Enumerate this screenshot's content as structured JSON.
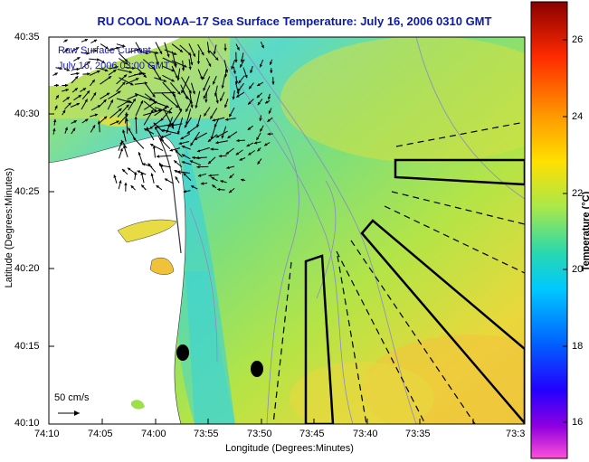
{
  "title": "RU COOL  NOAA–17  Sea Surface Temperature:  July 16, 2006 0310 GMT",
  "axes": {
    "ylabel": "Latitude (Degrees:Minutes)",
    "xlabel": "Longitude (Degrees:Minutes)",
    "yticks": [
      "40:35",
      "40:30",
      "40:25",
      "40:20",
      "40:15",
      "40:10"
    ],
    "xticks": [
      "74:10",
      "74:05",
      "74:00",
      "73:55",
      "73:50",
      "73:45",
      "73:40",
      "73:35",
      "73:3"
    ]
  },
  "overlay": {
    "line1": "Raw Surface Current",
    "line2": "July 16, 2006 03:00 GMT"
  },
  "scale": {
    "label": "50 cm/s"
  },
  "colorbar": {
    "label": "Temperature (°C)",
    "ticks": [
      "26",
      "24",
      "22",
      "20",
      "18",
      "16"
    ],
    "min": 15.3,
    "max": 27.2
  },
  "colors": {
    "title": "#0b1aa8",
    "land": "#ffffff",
    "water_warm": "#f2d23c",
    "water_mid": "#8fe04a",
    "water_cool": "#4fd7b8"
  }
}
